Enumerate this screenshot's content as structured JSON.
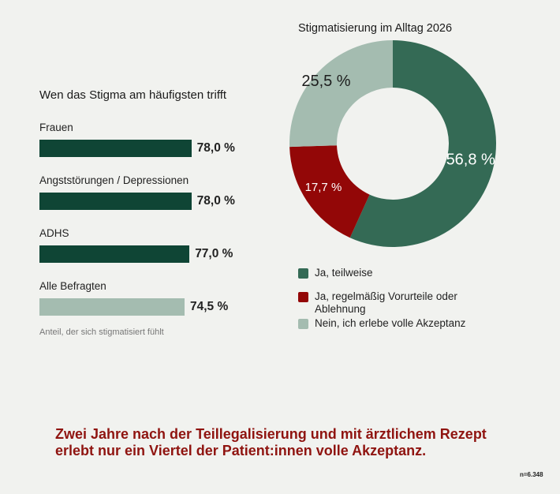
{
  "bar_chart": {
    "title": "Wen das Stigma am häufigsten trifft",
    "note": "Anteil, der sich stigmatisiert fühlt"
  },
  "donut_chart": {
    "title": "Stigmatisierung im Alltag 2026"
  },
  "headline": "Zwei Jahre nach der Teillegalisierung und mit ärztlichem Rezept erlebt nur ein Viertel der Patient:innen volle Akzeptanz.",
  "sample_size": "n=6.348",
  "chart_data": [
    {
      "type": "bar",
      "orientation": "horizontal",
      "title": "Wen das Stigma am häufigsten trifft",
      "categories": [
        "Frauen",
        "Angststörungen / Depressionen",
        "ADHS",
        "Alle Befragten"
      ],
      "values": [
        78.0,
        78.0,
        77.0,
        74.5
      ],
      "value_labels": [
        "78,0 %",
        "78,0 %",
        "77,0 %",
        "74,5 %"
      ],
      "colors": [
        "#0f4535",
        "#0f4535",
        "#0f4535",
        "#a4bcb0"
      ],
      "unit": "%",
      "xlim": [
        0,
        100
      ],
      "note": "Anteil, der sich stigmatisiert fühlt"
    },
    {
      "type": "pie",
      "style": "donut",
      "title": "Stigmatisierung im Alltag 2026",
      "slices": [
        {
          "label": "Ja, teilweise",
          "value": 56.8,
          "display": "56,8 %",
          "color": "#346a55"
        },
        {
          "label": "Ja, regelmäßig Vorurteile oder Ablehnung",
          "value": 17.7,
          "display": "17,7 %",
          "color": "#930707"
        },
        {
          "label": "Nein, ich erlebe volle Akzeptanz",
          "value": 25.5,
          "display": "25,5 %",
          "color": "#a4bcb0"
        }
      ],
      "start": "12 o'clock",
      "direction": "clockwise",
      "legend_position": "bottom"
    }
  ]
}
